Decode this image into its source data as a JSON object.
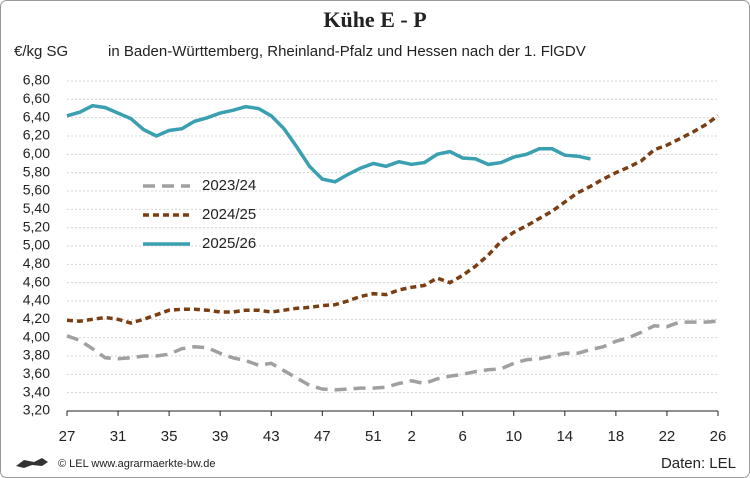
{
  "chart_data": {
    "type": "line",
    "title": "Kühe E - P",
    "y_label": "€/kg SG",
    "subtitle": "in Baden-Württemberg, Rheinland-Pfalz und Hessen nach der 1. FlGDV",
    "source_left": "© LEL www.agrarmaerkte-bw.de",
    "source_right": "Daten: LEL",
    "categories": [
      "27",
      null,
      null,
      null,
      "31",
      null,
      null,
      null,
      "35",
      null,
      null,
      null,
      "39",
      null,
      null,
      null,
      "43",
      null,
      null,
      null,
      "47",
      null,
      null,
      null,
      "51",
      null,
      null,
      "2",
      null,
      null,
      null,
      "6",
      null,
      null,
      null,
      "10",
      null,
      null,
      null,
      "14",
      null,
      null,
      null,
      "18",
      null,
      null,
      null,
      "22",
      null,
      null,
      null,
      "26"
    ],
    "series": [
      {
        "name": "2023/24",
        "color": "#a0a0a0",
        "dash": "12 7",
        "values": [
          4.02,
          3.97,
          3.88,
          3.78,
          3.77,
          3.78,
          3.8,
          3.8,
          3.82,
          3.88,
          3.9,
          3.89,
          3.83,
          3.78,
          3.75,
          3.7,
          3.72,
          3.64,
          3.56,
          3.48,
          3.44,
          3.43,
          3.44,
          3.45,
          3.45,
          3.46,
          3.5,
          3.53,
          3.5,
          3.55,
          3.58,
          3.6,
          3.63,
          3.65,
          3.66,
          3.72,
          3.76,
          3.77,
          3.8,
          3.83,
          3.83,
          3.87,
          3.9,
          3.96,
          4.0,
          4.06,
          4.13,
          4.12,
          4.17,
          4.17,
          4.17,
          4.18
        ]
      },
      {
        "name": "2024/25",
        "color": "#7a3e12",
        "dash": "6 4",
        "values": [
          4.19,
          4.18,
          4.2,
          4.22,
          4.2,
          4.16,
          4.2,
          4.25,
          4.3,
          4.31,
          4.31,
          4.3,
          4.28,
          4.28,
          4.3,
          4.3,
          4.28,
          4.3,
          4.32,
          4.33,
          4.35,
          4.36,
          4.4,
          4.45,
          4.48,
          4.47,
          4.52,
          4.55,
          4.57,
          4.65,
          4.6,
          4.68,
          4.78,
          4.9,
          5.05,
          5.15,
          5.22,
          5.3,
          5.38,
          5.48,
          5.58,
          5.65,
          5.73,
          5.8,
          5.86,
          5.93,
          6.05,
          6.1,
          6.17,
          6.24,
          6.32,
          6.42
        ]
      },
      {
        "name": "2025/26",
        "color": "#3a9fb0",
        "dash": "none",
        "values": [
          6.42,
          6.46,
          6.53,
          6.51,
          6.45,
          6.39,
          6.27,
          6.2,
          6.26,
          6.28,
          6.36,
          6.4,
          6.45,
          6.48,
          6.52,
          6.5,
          6.42,
          6.28,
          6.08,
          5.87,
          5.73,
          5.7,
          5.78,
          5.85,
          5.9,
          5.87,
          5.92,
          5.89,
          5.91,
          6.0,
          6.03,
          5.96,
          5.95,
          5.89,
          5.91,
          5.97,
          6.0,
          6.06,
          6.06,
          5.99,
          5.98,
          5.95,
          null,
          null,
          null,
          null,
          null,
          null,
          null,
          null,
          null,
          null
        ]
      }
    ],
    "ylim": [
      3.2,
      6.8
    ],
    "yticks": [
      {
        "value": 3.2,
        "label": "3,20"
      },
      {
        "value": 3.4,
        "label": "3,40"
      },
      {
        "value": 3.6,
        "label": "3,60"
      },
      {
        "value": 3.8,
        "label": "3,80"
      },
      {
        "value": 4.0,
        "label": "4,00"
      },
      {
        "value": 4.2,
        "label": "4,20"
      },
      {
        "value": 4.4,
        "label": "4,40"
      },
      {
        "value": 4.6,
        "label": "4,60"
      },
      {
        "value": 4.8,
        "label": "4,80"
      },
      {
        "value": 5.0,
        "label": "5,00"
      },
      {
        "value": 5.2,
        "label": "5,20"
      },
      {
        "value": 5.4,
        "label": "5,40"
      },
      {
        "value": 5.6,
        "label": "5,60"
      },
      {
        "value": 5.8,
        "label": "5,80"
      },
      {
        "value": 6.0,
        "label": "6,00"
      },
      {
        "value": 6.2,
        "label": "6,20"
      },
      {
        "value": 6.4,
        "label": "6,40"
      },
      {
        "value": 6.6,
        "label": "6,60"
      },
      {
        "value": 6.8,
        "label": "6,80"
      }
    ],
    "grid": true
  }
}
